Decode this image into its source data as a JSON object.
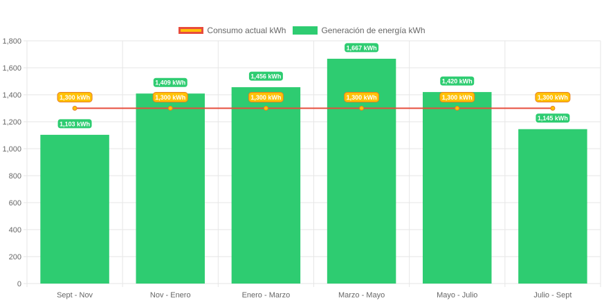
{
  "chart_data": {
    "type": "bar",
    "categories": [
      "Sept - Nov",
      "Nov - Enero",
      "Enero - Marzo",
      "Marzo - Mayo",
      "Mayo - Julio",
      "Julio - Sept"
    ],
    "series": [
      {
        "name": "Consumo actual kWh",
        "kind": "line",
        "values": [
          1300,
          1300,
          1300,
          1300,
          1300,
          1300
        ],
        "labels": [
          "1,300 kWh",
          "1,300 kWh",
          "1,300 kWh",
          "1,300 kWh",
          "1,300 kWh",
          "1,300 kWh"
        ]
      },
      {
        "name": "Generación de energía kWh",
        "kind": "bar",
        "values": [
          1103,
          1409,
          1456,
          1667,
          1420,
          1145
        ],
        "labels": [
          "1,103 kWh",
          "1,409 kWh",
          "1,456 kWh",
          "1,667 kWh",
          "1,420 kWh",
          "1,145 kWh"
        ]
      }
    ],
    "yticks": [
      "0",
      "200",
      "400",
      "600",
      "800",
      "1,000",
      "1,200",
      "1,400",
      "1,600",
      "1,800"
    ],
    "ylim": [
      0,
      1800
    ],
    "grid": true,
    "legend": "top-center",
    "colors": {
      "bar": "#2ecc71",
      "line": "#e74c3c",
      "line_label_bg": "#ffc107",
      "line_label_border": "#e67e22",
      "grid": "#e6e6e6",
      "tick_text": "#666666"
    }
  }
}
